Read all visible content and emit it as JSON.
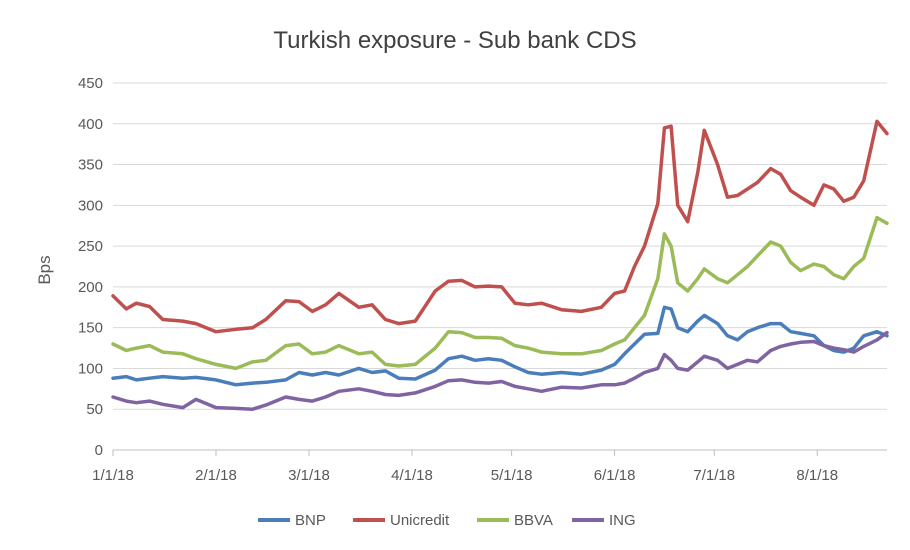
{
  "chart_data": {
    "type": "line",
    "title": "Turkish exposure - Sub bank CDS",
    "ylabel": "Bps",
    "xlabel": "",
    "ylim": [
      0,
      450
    ],
    "yticks": [
      "0",
      "50",
      "100",
      "150",
      "200",
      "250",
      "300",
      "350",
      "400",
      "450"
    ],
    "xlim": [
      "2018-01-01",
      "2018-08-22"
    ],
    "xticks": [
      {
        "date": "2018-01-01",
        "label": "1/1/18"
      },
      {
        "date": "2018-02-01",
        "label": "2/1/18"
      },
      {
        "date": "2018-03-01",
        "label": "3/1/18"
      },
      {
        "date": "2018-04-01",
        "label": "4/1/18"
      },
      {
        "date": "2018-05-01",
        "label": "5/1/18"
      },
      {
        "date": "2018-06-01",
        "label": "6/1/18"
      },
      {
        "date": "2018-07-01",
        "label": "7/1/18"
      },
      {
        "date": "2018-08-01",
        "label": "8/1/18"
      }
    ],
    "grid": "horizontal",
    "legend_position": "bottom",
    "series": [
      {
        "name": "BNP",
        "color": "#4a7ebb",
        "points": [
          [
            "2018-01-01",
            88
          ],
          [
            "2018-01-05",
            90
          ],
          [
            "2018-01-08",
            86
          ],
          [
            "2018-01-12",
            88
          ],
          [
            "2018-01-16",
            90
          ],
          [
            "2018-01-22",
            88
          ],
          [
            "2018-01-26",
            89
          ],
          [
            "2018-02-01",
            86
          ],
          [
            "2018-02-07",
            80
          ],
          [
            "2018-02-12",
            82
          ],
          [
            "2018-02-16",
            83
          ],
          [
            "2018-02-22",
            86
          ],
          [
            "2018-02-26",
            95
          ],
          [
            "2018-03-02",
            92
          ],
          [
            "2018-03-06",
            95
          ],
          [
            "2018-03-10",
            92
          ],
          [
            "2018-03-16",
            100
          ],
          [
            "2018-03-20",
            95
          ],
          [
            "2018-03-24",
            97
          ],
          [
            "2018-03-28",
            88
          ],
          [
            "2018-04-02",
            87
          ],
          [
            "2018-04-08",
            98
          ],
          [
            "2018-04-12",
            112
          ],
          [
            "2018-04-16",
            115
          ],
          [
            "2018-04-20",
            110
          ],
          [
            "2018-04-24",
            112
          ],
          [
            "2018-04-28",
            110
          ],
          [
            "2018-05-02",
            102
          ],
          [
            "2018-05-06",
            95
          ],
          [
            "2018-05-10",
            93
          ],
          [
            "2018-05-16",
            95
          ],
          [
            "2018-05-22",
            93
          ],
          [
            "2018-05-28",
            98
          ],
          [
            "2018-06-01",
            105
          ],
          [
            "2018-06-04",
            118
          ],
          [
            "2018-06-07",
            130
          ],
          [
            "2018-06-10",
            142
          ],
          [
            "2018-06-14",
            143
          ],
          [
            "2018-06-16",
            175
          ],
          [
            "2018-06-18",
            173
          ],
          [
            "2018-06-20",
            150
          ],
          [
            "2018-06-23",
            145
          ],
          [
            "2018-06-26",
            158
          ],
          [
            "2018-06-28",
            165
          ],
          [
            "2018-07-02",
            155
          ],
          [
            "2018-07-05",
            140
          ],
          [
            "2018-07-08",
            135
          ],
          [
            "2018-07-11",
            145
          ],
          [
            "2018-07-14",
            150
          ],
          [
            "2018-07-18",
            155
          ],
          [
            "2018-07-21",
            155
          ],
          [
            "2018-07-24",
            145
          ],
          [
            "2018-07-27",
            143
          ],
          [
            "2018-07-31",
            140
          ],
          [
            "2018-08-03",
            128
          ],
          [
            "2018-08-06",
            122
          ],
          [
            "2018-08-09",
            120
          ],
          [
            "2018-08-12",
            125
          ],
          [
            "2018-08-15",
            140
          ],
          [
            "2018-08-19",
            145
          ],
          [
            "2018-08-22",
            140
          ]
        ]
      },
      {
        "name": "Unicredit",
        "color": "#c0504d",
        "points": [
          [
            "2018-01-01",
            189
          ],
          [
            "2018-01-05",
            173
          ],
          [
            "2018-01-08",
            180
          ],
          [
            "2018-01-12",
            176
          ],
          [
            "2018-01-16",
            160
          ],
          [
            "2018-01-22",
            158
          ],
          [
            "2018-01-26",
            155
          ],
          [
            "2018-02-01",
            145
          ],
          [
            "2018-02-07",
            148
          ],
          [
            "2018-02-12",
            150
          ],
          [
            "2018-02-16",
            160
          ],
          [
            "2018-02-22",
            183
          ],
          [
            "2018-02-26",
            182
          ],
          [
            "2018-03-02",
            170
          ],
          [
            "2018-03-06",
            178
          ],
          [
            "2018-03-10",
            192
          ],
          [
            "2018-03-16",
            175
          ],
          [
            "2018-03-20",
            178
          ],
          [
            "2018-03-24",
            160
          ],
          [
            "2018-03-28",
            155
          ],
          [
            "2018-04-02",
            158
          ],
          [
            "2018-04-08",
            195
          ],
          [
            "2018-04-12",
            207
          ],
          [
            "2018-04-16",
            208
          ],
          [
            "2018-04-20",
            200
          ],
          [
            "2018-04-24",
            201
          ],
          [
            "2018-04-28",
            200
          ],
          [
            "2018-05-02",
            180
          ],
          [
            "2018-05-06",
            178
          ],
          [
            "2018-05-10",
            180
          ],
          [
            "2018-05-16",
            172
          ],
          [
            "2018-05-22",
            170
          ],
          [
            "2018-05-28",
            175
          ],
          [
            "2018-06-01",
            192
          ],
          [
            "2018-06-04",
            195
          ],
          [
            "2018-06-07",
            225
          ],
          [
            "2018-06-10",
            250
          ],
          [
            "2018-06-14",
            302
          ],
          [
            "2018-06-16",
            395
          ],
          [
            "2018-06-18",
            397
          ],
          [
            "2018-06-20",
            300
          ],
          [
            "2018-06-23",
            280
          ],
          [
            "2018-06-26",
            340
          ],
          [
            "2018-06-28",
            392
          ],
          [
            "2018-07-02",
            350
          ],
          [
            "2018-07-05",
            310
          ],
          [
            "2018-07-08",
            312
          ],
          [
            "2018-07-11",
            320
          ],
          [
            "2018-07-14",
            328
          ],
          [
            "2018-07-18",
            345
          ],
          [
            "2018-07-21",
            338
          ],
          [
            "2018-07-24",
            318
          ],
          [
            "2018-07-27",
            310
          ],
          [
            "2018-07-31",
            300
          ],
          [
            "2018-08-03",
            325
          ],
          [
            "2018-08-06",
            320
          ],
          [
            "2018-08-09",
            305
          ],
          [
            "2018-08-12",
            310
          ],
          [
            "2018-08-15",
            330
          ],
          [
            "2018-08-19",
            403
          ],
          [
            "2018-08-22",
            388
          ]
        ]
      },
      {
        "name": "BBVA",
        "color": "#9bbb59",
        "points": [
          [
            "2018-01-01",
            130
          ],
          [
            "2018-01-05",
            122
          ],
          [
            "2018-01-08",
            125
          ],
          [
            "2018-01-12",
            128
          ],
          [
            "2018-01-16",
            120
          ],
          [
            "2018-01-22",
            118
          ],
          [
            "2018-01-26",
            112
          ],
          [
            "2018-02-01",
            105
          ],
          [
            "2018-02-07",
            100
          ],
          [
            "2018-02-12",
            108
          ],
          [
            "2018-02-16",
            110
          ],
          [
            "2018-02-22",
            128
          ],
          [
            "2018-02-26",
            130
          ],
          [
            "2018-03-02",
            118
          ],
          [
            "2018-03-06",
            120
          ],
          [
            "2018-03-10",
            128
          ],
          [
            "2018-03-16",
            118
          ],
          [
            "2018-03-20",
            120
          ],
          [
            "2018-03-24",
            105
          ],
          [
            "2018-03-28",
            103
          ],
          [
            "2018-04-02",
            105
          ],
          [
            "2018-04-08",
            125
          ],
          [
            "2018-04-12",
            145
          ],
          [
            "2018-04-16",
            144
          ],
          [
            "2018-04-20",
            138
          ],
          [
            "2018-04-24",
            138
          ],
          [
            "2018-04-28",
            137
          ],
          [
            "2018-05-02",
            128
          ],
          [
            "2018-05-06",
            125
          ],
          [
            "2018-05-10",
            120
          ],
          [
            "2018-05-16",
            118
          ],
          [
            "2018-05-22",
            118
          ],
          [
            "2018-05-28",
            122
          ],
          [
            "2018-06-01",
            130
          ],
          [
            "2018-06-04",
            135
          ],
          [
            "2018-06-07",
            150
          ],
          [
            "2018-06-10",
            165
          ],
          [
            "2018-06-14",
            210
          ],
          [
            "2018-06-16",
            265
          ],
          [
            "2018-06-18",
            250
          ],
          [
            "2018-06-20",
            205
          ],
          [
            "2018-06-23",
            195
          ],
          [
            "2018-06-26",
            210
          ],
          [
            "2018-06-28",
            222
          ],
          [
            "2018-07-02",
            210
          ],
          [
            "2018-07-05",
            205
          ],
          [
            "2018-07-08",
            215
          ],
          [
            "2018-07-11",
            225
          ],
          [
            "2018-07-14",
            238
          ],
          [
            "2018-07-18",
            255
          ],
          [
            "2018-07-21",
            250
          ],
          [
            "2018-07-24",
            230
          ],
          [
            "2018-07-27",
            220
          ],
          [
            "2018-07-31",
            228
          ],
          [
            "2018-08-03",
            225
          ],
          [
            "2018-08-06",
            215
          ],
          [
            "2018-08-09",
            210
          ],
          [
            "2018-08-12",
            225
          ],
          [
            "2018-08-15",
            235
          ],
          [
            "2018-08-19",
            285
          ],
          [
            "2018-08-22",
            278
          ]
        ]
      },
      {
        "name": "ING",
        "color": "#8064a2",
        "points": [
          [
            "2018-01-01",
            65
          ],
          [
            "2018-01-05",
            60
          ],
          [
            "2018-01-08",
            58
          ],
          [
            "2018-01-12",
            60
          ],
          [
            "2018-01-16",
            56
          ],
          [
            "2018-01-22",
            52
          ],
          [
            "2018-01-26",
            62
          ],
          [
            "2018-02-01",
            52
          ],
          [
            "2018-02-07",
            51
          ],
          [
            "2018-02-12",
            50
          ],
          [
            "2018-02-16",
            55
          ],
          [
            "2018-02-22",
            65
          ],
          [
            "2018-02-26",
            62
          ],
          [
            "2018-03-02",
            60
          ],
          [
            "2018-03-06",
            65
          ],
          [
            "2018-03-10",
            72
          ],
          [
            "2018-03-16",
            75
          ],
          [
            "2018-03-20",
            72
          ],
          [
            "2018-03-24",
            68
          ],
          [
            "2018-03-28",
            67
          ],
          [
            "2018-04-02",
            70
          ],
          [
            "2018-04-08",
            78
          ],
          [
            "2018-04-12",
            85
          ],
          [
            "2018-04-16",
            86
          ],
          [
            "2018-04-20",
            83
          ],
          [
            "2018-04-24",
            82
          ],
          [
            "2018-04-28",
            84
          ],
          [
            "2018-05-02",
            78
          ],
          [
            "2018-05-06",
            75
          ],
          [
            "2018-05-10",
            72
          ],
          [
            "2018-05-16",
            77
          ],
          [
            "2018-05-22",
            76
          ],
          [
            "2018-05-28",
            80
          ],
          [
            "2018-06-01",
            80
          ],
          [
            "2018-06-04",
            82
          ],
          [
            "2018-06-07",
            88
          ],
          [
            "2018-06-10",
            95
          ],
          [
            "2018-06-14",
            100
          ],
          [
            "2018-06-16",
            117
          ],
          [
            "2018-06-18",
            110
          ],
          [
            "2018-06-20",
            100
          ],
          [
            "2018-06-23",
            98
          ],
          [
            "2018-06-26",
            108
          ],
          [
            "2018-06-28",
            115
          ],
          [
            "2018-07-02",
            110
          ],
          [
            "2018-07-05",
            100
          ],
          [
            "2018-07-08",
            105
          ],
          [
            "2018-07-11",
            110
          ],
          [
            "2018-07-14",
            108
          ],
          [
            "2018-07-18",
            122
          ],
          [
            "2018-07-21",
            127
          ],
          [
            "2018-07-24",
            130
          ],
          [
            "2018-07-27",
            132
          ],
          [
            "2018-07-31",
            133
          ],
          [
            "2018-08-03",
            128
          ],
          [
            "2018-08-06",
            125
          ],
          [
            "2018-08-09",
            123
          ],
          [
            "2018-08-12",
            120
          ],
          [
            "2018-08-15",
            127
          ],
          [
            "2018-08-19",
            135
          ],
          [
            "2018-08-22",
            144
          ]
        ]
      }
    ]
  }
}
